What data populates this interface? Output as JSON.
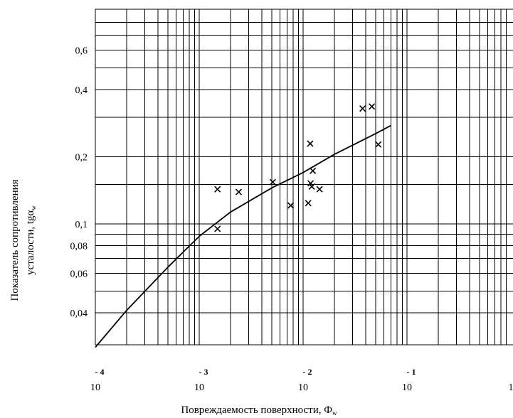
{
  "chart_data": {
    "type": "scatter",
    "xscale": "log",
    "yscale": "log",
    "xlim": [
      0.0001,
      0.1
    ],
    "ylim": [
      0.028,
      1.0
    ],
    "grid": true,
    "xlabel": {
      "main": "Повреждаемость поверхности, Ф",
      "sub": "w"
    },
    "ylabel": {
      "line1": "Показатель сопротивления",
      "line2_main": "усталости, tgα",
      "line2_sub": "w"
    },
    "y_ticks": [
      {
        "value": 0.04,
        "label": "0,04"
      },
      {
        "value": 0.06,
        "label": "0,06"
      },
      {
        "value": 0.08,
        "label": "0,08"
      },
      {
        "value": 0.1,
        "label": "0,1"
      },
      {
        "value": 0.2,
        "label": "0,2"
      },
      {
        "value": 0.4,
        "label": "0,4"
      },
      {
        "value": 0.6,
        "label": "0,6"
      }
    ],
    "x_ticks": [
      {
        "value": 0.0001,
        "base": "10",
        "exp": "- 4"
      },
      {
        "value": 0.001,
        "base": "10",
        "exp": "- 3"
      },
      {
        "value": 0.01,
        "base": "10",
        "exp": "- 2"
      },
      {
        "value": 0.1,
        "base": "10",
        "exp": "- 1"
      },
      {
        "value": 1,
        "base": "1",
        "exp": ""
      }
    ],
    "y_grid_values": [
      0.04,
      0.06,
      0.08,
      0.1,
      0.2,
      0.4,
      0.6,
      0.8,
      1.0
    ],
    "x_minor_per_decade": [
      2,
      3,
      4,
      5,
      6,
      7,
      8,
      9
    ],
    "extra_y_gridlines": [
      0.026,
      0.05,
      0.07,
      0.09,
      0.15,
      0.3,
      0.5,
      0.7
    ],
    "points": [
      [
        0.0015,
        0.143
      ],
      [
        0.0015,
        0.095
      ],
      [
        0.0024,
        0.139
      ],
      [
        0.0051,
        0.154
      ],
      [
        0.0076,
        0.121
      ],
      [
        0.0112,
        0.124
      ],
      [
        0.0117,
        0.229
      ],
      [
        0.0118,
        0.152
      ],
      [
        0.0121,
        0.147
      ],
      [
        0.0124,
        0.173
      ],
      [
        0.0144,
        0.143
      ],
      [
        0.0374,
        0.329
      ],
      [
        0.0459,
        0.336
      ],
      [
        0.053,
        0.227
      ]
    ],
    "curve": [
      [
        0.0001,
        0.028
      ],
      [
        0.0002,
        0.041
      ],
      [
        0.0005,
        0.064
      ],
      [
        0.001,
        0.088
      ],
      [
        0.002,
        0.113
      ],
      [
        0.005,
        0.145
      ],
      [
        0.01,
        0.17
      ],
      [
        0.02,
        0.205
      ],
      [
        0.05,
        0.254
      ],
      [
        0.07,
        0.276
      ]
    ]
  }
}
